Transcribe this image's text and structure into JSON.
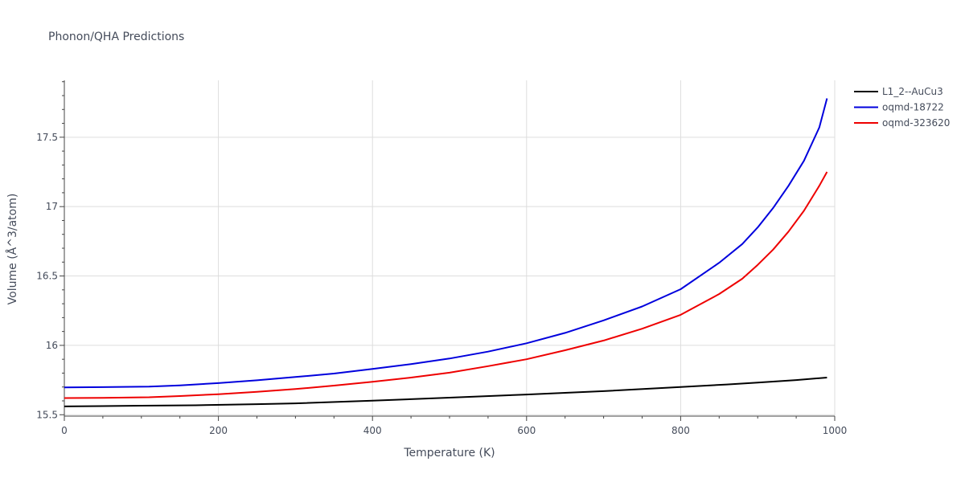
{
  "chart_data": {
    "type": "line",
    "title": "Phonon/QHA Predictions",
    "xlabel": "Temperature (K)",
    "ylabel": "Volume (Å^3/atom)",
    "xlim": [
      0,
      1000
    ],
    "ylim": [
      15.49,
      17.91
    ],
    "xticks": [
      0,
      200,
      400,
      600,
      800,
      1000
    ],
    "xtick_labels": [
      "0",
      "200",
      "400",
      "600",
      "800",
      "1000"
    ],
    "yticks": [
      15.5,
      16,
      16.5,
      17,
      17.5
    ],
    "ytick_labels": [
      "15.5",
      "16",
      "16.5",
      "17",
      "17.5"
    ],
    "grid": true,
    "legend_position": "top-right",
    "series": [
      {
        "name": "L1_2--AuCu3",
        "color": "#000000",
        "x": [
          0,
          100,
          170,
          250,
          300,
          400,
          500,
          600,
          700,
          800,
          860,
          900,
          950,
          990
        ],
        "y": [
          15.56,
          15.565,
          15.568,
          15.576,
          15.582,
          15.601,
          15.623,
          15.646,
          15.67,
          15.7,
          15.718,
          15.732,
          15.75,
          15.768
        ]
      },
      {
        "name": "oqmd-18722",
        "color": "#0000dd",
        "x": [
          0,
          50,
          110,
          150,
          200,
          250,
          300,
          350,
          400,
          450,
          500,
          550,
          600,
          650,
          700,
          750,
          800,
          850,
          880,
          900,
          920,
          940,
          960,
          980,
          990
        ],
        "y": [
          15.697,
          15.699,
          15.703,
          15.712,
          15.728,
          15.748,
          15.772,
          15.797,
          15.83,
          15.865,
          15.905,
          15.955,
          16.015,
          16.09,
          16.18,
          16.28,
          16.405,
          16.595,
          16.73,
          16.85,
          16.99,
          17.15,
          17.33,
          17.57,
          17.78
        ]
      },
      {
        "name": "oqmd-323620",
        "color": "#ee0000",
        "x": [
          0,
          50,
          110,
          150,
          200,
          250,
          300,
          350,
          400,
          450,
          500,
          550,
          600,
          650,
          700,
          750,
          800,
          850,
          880,
          900,
          920,
          940,
          960,
          980,
          990
        ],
        "y": [
          15.62,
          15.622,
          15.626,
          15.635,
          15.648,
          15.665,
          15.685,
          15.71,
          15.738,
          15.768,
          15.803,
          15.85,
          15.9,
          15.965,
          16.035,
          16.12,
          16.22,
          16.37,
          16.48,
          16.58,
          16.69,
          16.82,
          16.97,
          17.15,
          17.25
        ]
      }
    ]
  }
}
